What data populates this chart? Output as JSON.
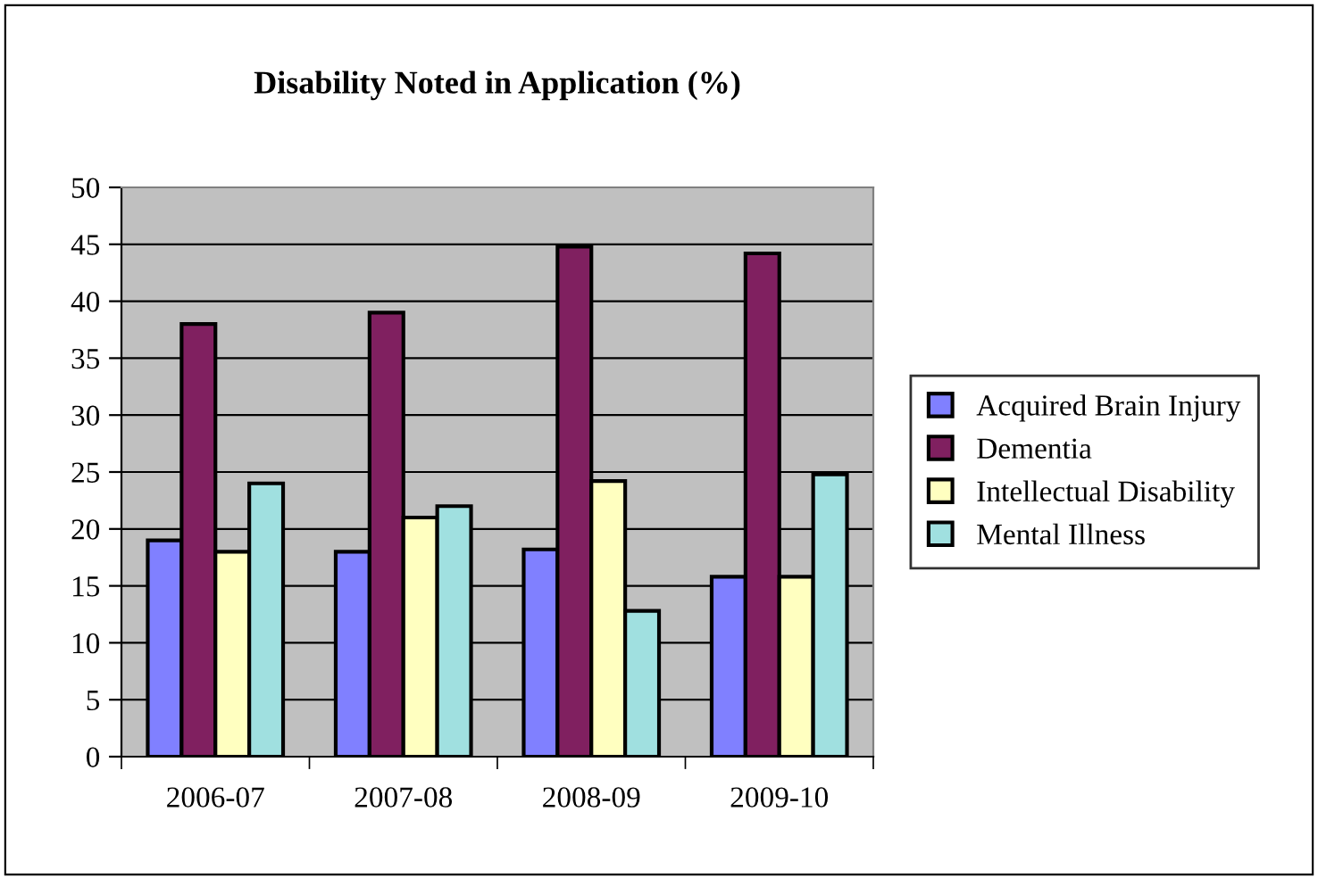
{
  "chart_data": {
    "type": "bar",
    "title": "Disability Noted in Application (%)",
    "categories": [
      "2006-07",
      "2007-08",
      "2008-09",
      "2009-10"
    ],
    "series": [
      {
        "name": "Acquired Brain Injury",
        "color": "#8080ff",
        "values": [
          19,
          18,
          18.2,
          15.8
        ]
      },
      {
        "name": "Dementia",
        "color": "#802060",
        "values": [
          38,
          39,
          44.8,
          44.2
        ]
      },
      {
        "name": "Intellectual Disability",
        "color": "#ffffc0",
        "values": [
          18,
          21,
          24.2,
          15.8
        ]
      },
      {
        "name": "Mental Illness",
        "color": "#a0e0e0",
        "values": [
          24,
          22,
          12.8,
          24.8
        ]
      }
    ],
    "ylim": [
      0,
      50
    ],
    "yticks": [
      0,
      5,
      10,
      15,
      20,
      25,
      30,
      35,
      40,
      45,
      50
    ],
    "grid": "y",
    "legend": "right"
  }
}
